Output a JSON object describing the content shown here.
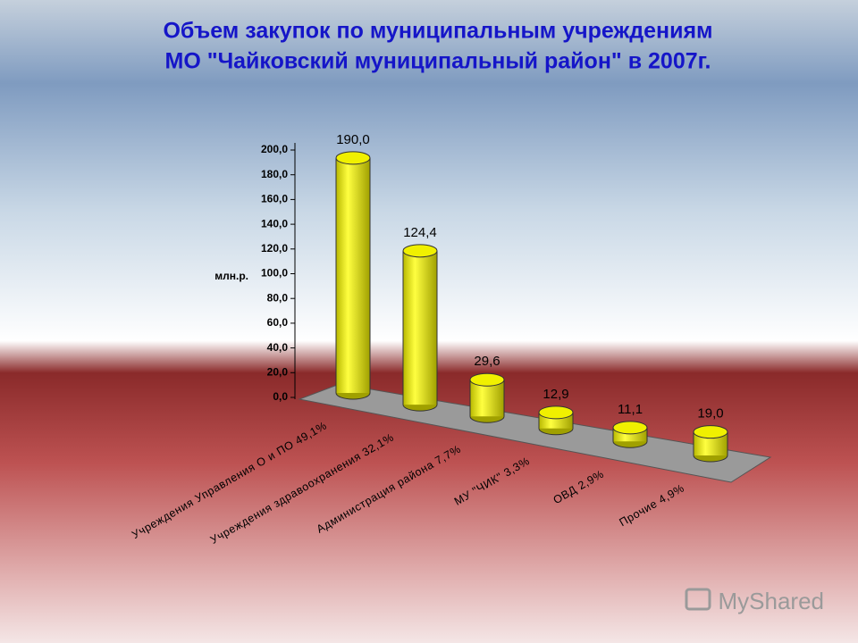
{
  "chart_data": {
    "type": "bar3d",
    "title": "Объем закупок по муниципальным учреждениям",
    "subtitle": "МО \"Чайковский муниципальный район\" в 2007г.",
    "y_label": "млн.р.",
    "categories": [
      "Учреждения Управления О и ПО  49,1%",
      "Учреждения здравоохранения 32,1%",
      "Администрация района 7,7%",
      "МУ \"ЧИК\" 3,3%",
      "ОВД 2,9%",
      "Прочие 4,9%"
    ],
    "values": [
      190.0,
      124.4,
      29.6,
      12.9,
      11.1,
      19.0
    ],
    "value_labels": [
      "190,0",
      "124,4",
      "29,6",
      "12,9",
      "11,1",
      "19,0"
    ],
    "color": "#f0f000",
    "ylim": [
      0,
      200
    ],
    "yticks": [
      {
        "value": 0,
        "label": "0,0"
      },
      {
        "value": 20,
        "label": "20,0"
      },
      {
        "value": 40,
        "label": "40,0"
      },
      {
        "value": 60,
        "label": "60,0"
      },
      {
        "value": 80,
        "label": "80,0"
      },
      {
        "value": 100,
        "label": "100,0"
      },
      {
        "value": 120,
        "label": "120,0"
      },
      {
        "value": 140,
        "label": "140,0"
      },
      {
        "value": 160,
        "label": "160,0"
      },
      {
        "value": 180,
        "label": "180,0"
      },
      {
        "value": 200,
        "label": "200,0"
      }
    ]
  },
  "watermark": "MyShared"
}
